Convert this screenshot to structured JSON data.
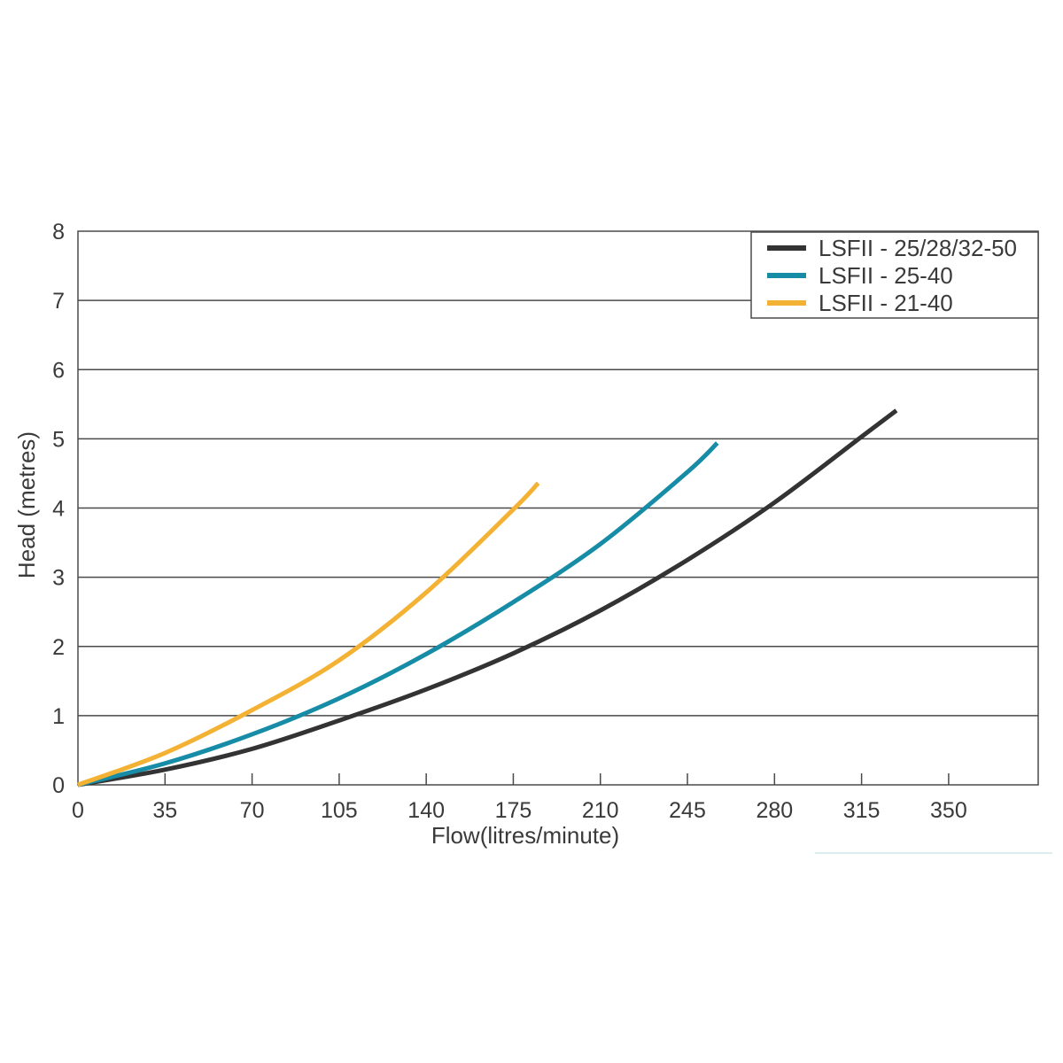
{
  "chart_data": {
    "type": "line",
    "xlabel": "Flow(litres/minute)",
    "ylabel": "Head (metres)",
    "xlim": [
      0,
      386
    ],
    "ylim": [
      0,
      8
    ],
    "x_ticks": [
      0,
      35,
      70,
      105,
      140,
      175,
      210,
      245,
      280,
      315,
      350
    ],
    "y_ticks": [
      0,
      1,
      2,
      3,
      4,
      5,
      6,
      7,
      8
    ],
    "grid": {
      "horizontal": true,
      "vertical": false
    },
    "legend_position": "top-right",
    "series": [
      {
        "name": "LSFII - 25/28/32-50",
        "color": "#333333",
        "points": [
          [
            0,
            0
          ],
          [
            35,
            0.22
          ],
          [
            70,
            0.52
          ],
          [
            105,
            0.93
          ],
          [
            140,
            1.38
          ],
          [
            175,
            1.9
          ],
          [
            210,
            2.52
          ],
          [
            245,
            3.25
          ],
          [
            280,
            4.08
          ],
          [
            315,
            5.03
          ],
          [
            329,
            5.41
          ]
        ]
      },
      {
        "name": "LSFII - 25-40",
        "color": "#168ca6",
        "points": [
          [
            0,
            0
          ],
          [
            35,
            0.31
          ],
          [
            70,
            0.73
          ],
          [
            105,
            1.25
          ],
          [
            140,
            1.89
          ],
          [
            175,
            2.64
          ],
          [
            210,
            3.48
          ],
          [
            245,
            4.52
          ],
          [
            257,
            4.94
          ]
        ]
      },
      {
        "name": "LSFII - 21-40",
        "color": "#f4b234",
        "points": [
          [
            0,
            0
          ],
          [
            35,
            0.46
          ],
          [
            70,
            1.08
          ],
          [
            105,
            1.8
          ],
          [
            140,
            2.78
          ],
          [
            175,
            3.98
          ],
          [
            185,
            4.36
          ]
        ]
      }
    ]
  }
}
